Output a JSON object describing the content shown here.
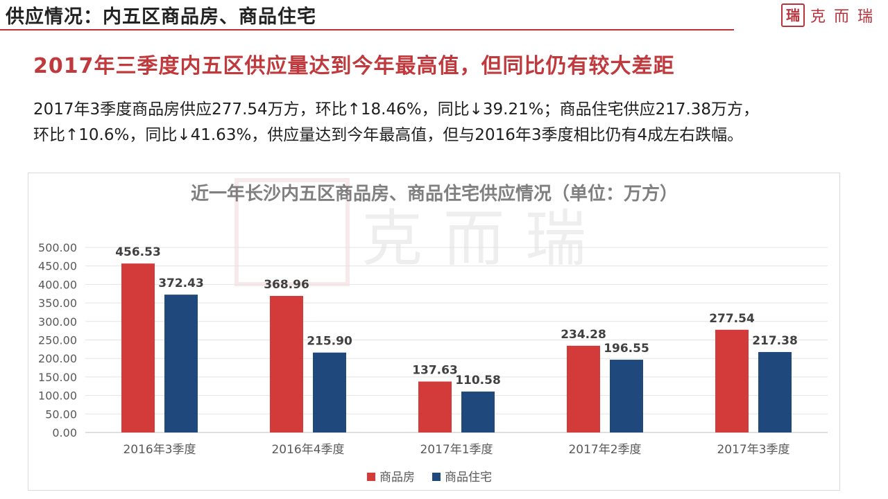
{
  "header": {
    "title": "供应情况：内五区商品房、商品住宅",
    "brand_name": "克而瑞",
    "brand_seal": "瑞",
    "accent_color": "#b7323a"
  },
  "headline": "2017年三季度内五区供应量达到今年最高值，但同比仍有较大差距",
  "body": {
    "line1": "2017年3季度商品房供应277.54万方，环比↑18.46%，同比↓39.21%；商品住宅供应217.38万方，",
    "line2": "环比↑10.6%，同比↓41.63%，供应量达到今年最高值，但与2016年3季度相比仍有4成左右跌幅。"
  },
  "chart_data": {
    "type": "bar",
    "title": "近一年长沙内五区商品房、商品住宅供应情况（单位：万方）",
    "categories": [
      "2016年3季度",
      "2016年4季度",
      "2017年1季度",
      "2017年2季度",
      "2017年3季度"
    ],
    "series": [
      {
        "name": "商品房",
        "color": "#d33b3b",
        "values": [
          456.53,
          368.96,
          137.63,
          234.28,
          277.54
        ]
      },
      {
        "name": "商品住宅",
        "color": "#1f497d",
        "values": [
          372.43,
          215.9,
          110.58,
          196.55,
          217.38
        ]
      }
    ],
    "ylim": [
      0,
      500
    ],
    "yticks": [
      "0.00",
      "50.00",
      "100.00",
      "150.00",
      "200.00",
      "250.00",
      "300.00",
      "350.00",
      "400.00",
      "450.00",
      "500.00"
    ],
    "data_labels": [
      [
        "456.53",
        "368.96",
        "137.63",
        "234.28",
        "277.54"
      ],
      [
        "372.43",
        "215.90",
        "110.58",
        "196.55",
        "217.38"
      ]
    ],
    "grid": true,
    "legend": "bottom-center",
    "watermark": "克而瑞"
  }
}
